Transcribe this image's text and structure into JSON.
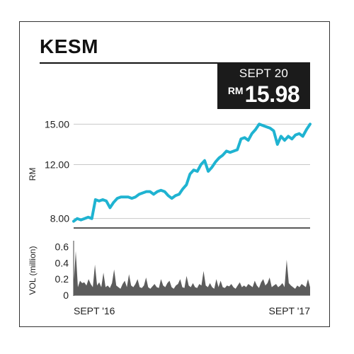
{
  "header": {
    "ticker": "KESM",
    "date_label": "SEPT 20",
    "price_currency": "RM",
    "price_value": "15.98"
  },
  "colors": {
    "price_line": "#1fb3d1",
    "volume_fill": "#5c5c5c",
    "price_box_bg": "#1b1b1b",
    "gridline": "#c8c8c8"
  },
  "chart_data": [
    {
      "type": "line",
      "ylabel": "RM",
      "ylim": [
        7.3,
        15.7
      ],
      "yticks": [
        "8.00",
        "12.00",
        "15.00"
      ],
      "ytick_values": [
        8.0,
        12.0,
        15.0
      ],
      "grid": true,
      "series": [
        {
          "values": [
            7.8,
            8.0,
            7.9,
            8.0,
            8.1,
            8.0,
            9.4,
            9.3,
            9.4,
            9.3,
            8.8,
            9.2,
            9.5,
            9.6,
            9.6,
            9.6,
            9.5,
            9.6,
            9.8,
            9.9,
            10.0,
            10.0,
            9.8,
            10.0,
            10.1,
            10.0,
            9.7,
            9.5,
            9.7,
            9.8,
            10.2,
            10.5,
            11.3,
            11.6,
            11.5,
            12.0,
            12.3,
            11.5,
            11.8,
            12.2,
            12.5,
            12.7,
            13.0,
            12.9,
            13.0,
            13.1,
            13.9,
            14.0,
            13.8,
            14.3,
            14.6,
            15.0,
            14.9,
            14.8,
            14.7,
            14.5,
            13.5,
            14.1,
            13.8,
            14.1,
            13.9,
            14.2,
            14.3,
            14.1,
            14.6,
            15.0
          ]
        }
      ]
    },
    {
      "type": "area",
      "ylabel": "VOL (million)",
      "ylim": [
        0,
        0.65
      ],
      "yticks": [
        "0.6",
        "0.4",
        "0.2",
        "0"
      ],
      "ytick_values": [
        0.6,
        0.4,
        0.2,
        0.0
      ],
      "xticks": [
        "SEPT '16",
        "SEPT '17"
      ],
      "series": [
        {
          "values": [
            0.12,
            0.55,
            0.1,
            0.18,
            0.15,
            0.16,
            0.12,
            0.2,
            0.14,
            0.1,
            0.38,
            0.12,
            0.16,
            0.1,
            0.28,
            0.1,
            0.12,
            0.09,
            0.15,
            0.32,
            0.12,
            0.1,
            0.08,
            0.14,
            0.18,
            0.1,
            0.26,
            0.12,
            0.1,
            0.14,
            0.2,
            0.1,
            0.09,
            0.12,
            0.22,
            0.1,
            0.08,
            0.11,
            0.14,
            0.1,
            0.09,
            0.2,
            0.12,
            0.1,
            0.15,
            0.18,
            0.1,
            0.08,
            0.12,
            0.14,
            0.2,
            0.1,
            0.09,
            0.24,
            0.12,
            0.1,
            0.15,
            0.1,
            0.09,
            0.14,
            0.12,
            0.3,
            0.12,
            0.1,
            0.15,
            0.1,
            0.08,
            0.2,
            0.1,
            0.18,
            0.1,
            0.09,
            0.12,
            0.11,
            0.14,
            0.1,
            0.08,
            0.12,
            0.16,
            0.1,
            0.12,
            0.1,
            0.14,
            0.12,
            0.1,
            0.18,
            0.12,
            0.09,
            0.16,
            0.2,
            0.12,
            0.15,
            0.22,
            0.1,
            0.12,
            0.14,
            0.1,
            0.12,
            0.15,
            0.1,
            0.44,
            0.15,
            0.12,
            0.1,
            0.08,
            0.12,
            0.1,
            0.14,
            0.12,
            0.1,
            0.2,
            0.1
          ]
        }
      ]
    }
  ]
}
